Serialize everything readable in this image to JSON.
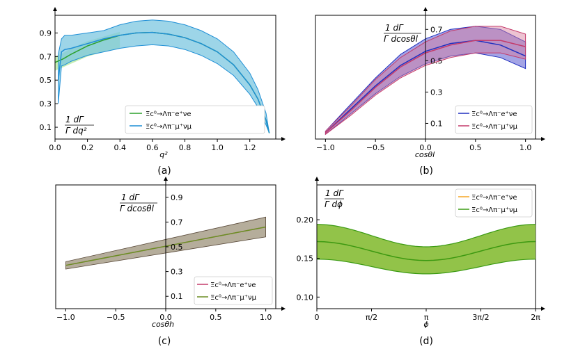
{
  "figure": {
    "captions": [
      "(a)",
      "(b)",
      "(c)",
      "(d)"
    ]
  },
  "colors": {
    "e_green": "#2ca02c",
    "mu_blue": "#1f8fd6",
    "band_blue_fill": "#7cc7e0",
    "b_blue": "#1f2fbf",
    "b_pink": "#c43a6a",
    "c_pink": "#c43a6a",
    "c_olive": "#6b8e23",
    "c_band": "#a89f8a",
    "d_orange": "#f5a623",
    "d_green": "#3a9a12",
    "d_band": "#8cc03f"
  },
  "chart_data": [
    {
      "id": "a",
      "type": "line",
      "caption": "(a)",
      "xlabel": "q²",
      "ylabel_num": "1  dΓ",
      "ylabel_den": "Γ dq²",
      "xlim": [
        0.0,
        1.36
      ],
      "ylim": [
        0.0,
        1.05
      ],
      "xticks": [
        "0.0",
        "0.2",
        "0.4",
        "0.6",
        "0.8",
        "1.0",
        "1.2"
      ],
      "xtick_values": [
        0.0,
        0.2,
        0.4,
        0.6,
        0.8,
        1.0,
        1.2
      ],
      "yticks": [
        "0.1",
        "0.3",
        "0.5",
        "0.7",
        "0.9"
      ],
      "ytick_values": [
        0.1,
        0.3,
        0.5,
        0.7,
        0.9
      ],
      "legend": [
        "Ξc⁰→Λπ⁻e⁺νe",
        "Ξc⁰→Λπ⁻μ⁺νμ"
      ],
      "series": [
        {
          "name": "e",
          "x": [
            0.0,
            0.05,
            0.1,
            0.2,
            0.3,
            0.4,
            0.5,
            0.6,
            0.7,
            0.8,
            0.9,
            1.0,
            1.1,
            1.2,
            1.25,
            1.3,
            1.32
          ],
          "y": [
            0.65,
            0.68,
            0.72,
            0.79,
            0.84,
            0.88,
            0.9,
            0.905,
            0.89,
            0.86,
            0.81,
            0.74,
            0.63,
            0.46,
            0.34,
            0.16,
            0.05
          ]
        },
        {
          "name": "mu",
          "x": [
            0.02,
            0.04,
            0.06,
            0.1,
            0.2,
            0.3,
            0.4,
            0.5,
            0.6,
            0.7,
            0.8,
            0.9,
            1.0,
            1.1,
            1.2,
            1.25,
            1.3,
            1.32
          ],
          "y": [
            0.5,
            0.74,
            0.76,
            0.77,
            0.81,
            0.85,
            0.88,
            0.9,
            0.905,
            0.89,
            0.86,
            0.81,
            0.74,
            0.63,
            0.46,
            0.34,
            0.16,
            0.05
          ],
          "upper": [
            0.72,
            0.85,
            0.88,
            0.88,
            0.9,
            0.92,
            0.97,
            1.0,
            1.01,
            1.0,
            0.97,
            0.92,
            0.85,
            0.74,
            0.56,
            0.42,
            0.22,
            0.05
          ],
          "lower": [
            0.3,
            0.62,
            0.63,
            0.66,
            0.71,
            0.74,
            0.77,
            0.79,
            0.8,
            0.79,
            0.76,
            0.71,
            0.64,
            0.54,
            0.38,
            0.27,
            0.12,
            0.05
          ]
        },
        {
          "name": "e_band",
          "x": [
            0.0,
            0.05,
            0.1,
            0.2,
            0.3,
            0.4
          ],
          "upper": [
            0.7,
            0.73,
            0.77,
            0.83,
            0.87,
            0.91
          ],
          "lower": [
            0.58,
            0.61,
            0.64,
            0.7,
            0.74,
            0.77
          ]
        }
      ]
    },
    {
      "id": "b",
      "type": "line",
      "caption": "(b)",
      "xlabel": "cosθl",
      "ylabel_num": "1   dΓ",
      "ylabel_den": "Γ dcosθl",
      "xlim": [
        -1.1,
        1.1
      ],
      "ylim": [
        0.0,
        0.79
      ],
      "xticks": [
        "−1.0",
        "−0.5",
        "0.0",
        "0.5",
        "1.0"
      ],
      "xtick_values": [
        -1.0,
        -0.5,
        0.0,
        0.5,
        1.0
      ],
      "yticks": [
        "0.1",
        "0.3",
        "0.5",
        "0.7"
      ],
      "ytick_values": [
        0.1,
        0.3,
        0.5,
        0.7
      ],
      "legend": [
        "Ξc⁰→Λπ⁻e⁺νe",
        "Ξc⁰→Λπ⁻μ⁺νμ"
      ],
      "series": [
        {
          "name": "e",
          "x": [
            -1.0,
            -0.75,
            -0.5,
            -0.25,
            0.0,
            0.25,
            0.5,
            0.75,
            1.0
          ],
          "y": [
            0.04,
            0.19,
            0.34,
            0.47,
            0.56,
            0.61,
            0.63,
            0.6,
            0.53
          ],
          "upper": [
            0.05,
            0.22,
            0.39,
            0.54,
            0.64,
            0.7,
            0.72,
            0.7,
            0.62
          ],
          "lower": [
            0.03,
            0.16,
            0.29,
            0.4,
            0.48,
            0.53,
            0.55,
            0.52,
            0.45
          ]
        },
        {
          "name": "mu",
          "x": [
            -1.0,
            -0.75,
            -0.5,
            -0.25,
            0.0,
            0.25,
            0.5,
            0.75,
            1.0
          ],
          "y": [
            0.04,
            0.18,
            0.33,
            0.46,
            0.55,
            0.6,
            0.63,
            0.63,
            0.59
          ],
          "upper": [
            0.05,
            0.21,
            0.38,
            0.52,
            0.62,
            0.69,
            0.72,
            0.72,
            0.67
          ],
          "lower": [
            0.03,
            0.15,
            0.28,
            0.39,
            0.47,
            0.52,
            0.55,
            0.55,
            0.51
          ]
        }
      ]
    },
    {
      "id": "c",
      "type": "line",
      "caption": "(c)",
      "xlabel": "cosθh",
      "ylabel_num": "1   dΓ",
      "ylabel_den": "Γ dcosθl",
      "xlim": [
        -1.1,
        1.1
      ],
      "ylim": [
        0.0,
        1.0
      ],
      "xticks": [
        "−1.0",
        "−0.5",
        "0.0",
        "0.5",
        "1.0"
      ],
      "xtick_values": [
        -1.0,
        -0.5,
        0.0,
        0.5,
        1.0
      ],
      "yticks": [
        "0.1",
        "0.3",
        "0.5",
        "0.7",
        "0.9"
      ],
      "ytick_values": [
        0.1,
        0.3,
        0.5,
        0.7,
        0.9
      ],
      "legend": [
        "Ξc⁰→Λπ⁻e⁺νe",
        "Ξc⁰→Λπ⁻μ⁺νμ"
      ],
      "series": [
        {
          "name": "e",
          "x": [
            -1.0,
            1.0
          ],
          "y": [
            0.35,
            0.66
          ]
        },
        {
          "name": "mu",
          "x": [
            -1.0,
            1.0
          ],
          "y": [
            0.35,
            0.66
          ],
          "upper": [
            0.38,
            0.74
          ],
          "lower": [
            0.32,
            0.58
          ]
        }
      ]
    },
    {
      "id": "d",
      "type": "line",
      "caption": "(d)",
      "xlabel": "ϕ",
      "ylabel_num": "1 dΓ",
      "ylabel_den": "Γ dϕ",
      "xlim": [
        0.0,
        6.2832
      ],
      "ylim": [
        0.085,
        0.245
      ],
      "xticks": [
        "0",
        "π/2",
        "π",
        "3π/2",
        "2π"
      ],
      "xtick_values": [
        0.0,
        1.5708,
        3.1416,
        4.7124,
        6.2832
      ],
      "yticks": [
        "0.10",
        "0.15",
        "0.20"
      ],
      "ytick_values": [
        0.1,
        0.15,
        0.2
      ],
      "legend": [
        "Ξc⁰→Λπ⁻e⁺νe",
        "Ξc⁰→Λπ⁻μ⁺νμ"
      ],
      "series": [
        {
          "name": "e",
          "center": 0.1595,
          "amp": 0.0122,
          "band_hi_center": 0.1795,
          "band_hi_amp": 0.0145,
          "band_lo_center": 0.1395,
          "band_lo_amp": 0.0095
        },
        {
          "name": "mu",
          "center": 0.1595,
          "amp": 0.0122,
          "band_hi_center": 0.1795,
          "band_hi_amp": 0.0145,
          "band_lo_center": 0.1395,
          "band_lo_amp": 0.0095
        }
      ]
    }
  ]
}
